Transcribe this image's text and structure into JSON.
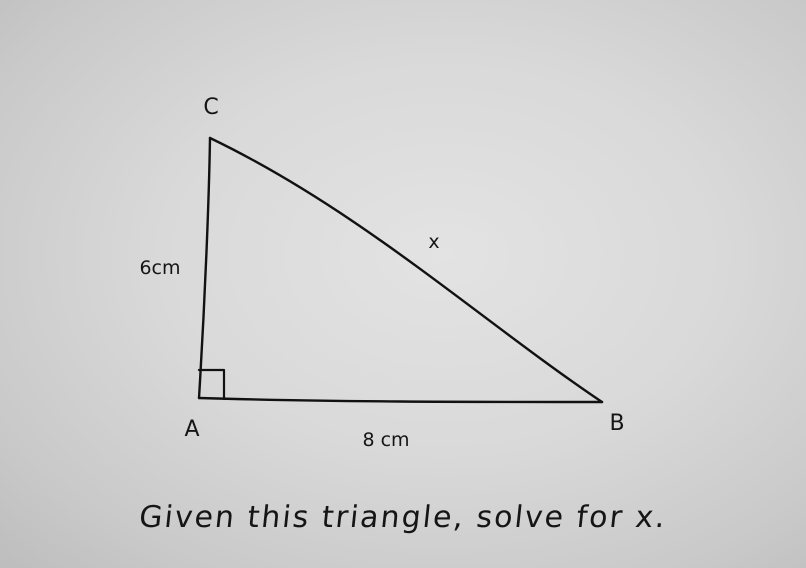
{
  "vertices": {
    "a": "A",
    "b": "B",
    "c": "C"
  },
  "sides": {
    "ac": "6cm",
    "ab": "8 cm",
    "bc": "x"
  },
  "right_angle_at": "A",
  "caption": "Given this triangle, solve for x."
}
